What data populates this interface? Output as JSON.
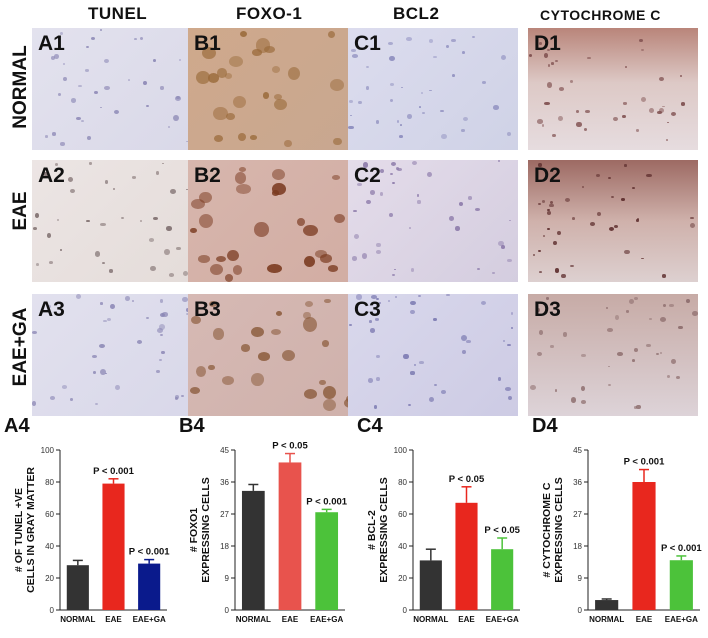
{
  "columns": [
    "TUNEL",
    "FOXO-1",
    "BCL2",
    "CYTOCHROME C"
  ],
  "rows": [
    "NORMAL",
    "EAE",
    "EAE+GA"
  ],
  "panel_labels": [
    [
      "A1",
      "B1",
      "C1",
      "D1"
    ],
    [
      "A2",
      "B2",
      "C2",
      "D2"
    ],
    [
      "A3",
      "B3",
      "C3",
      "D3"
    ]
  ],
  "colors": {
    "normal_bar": "#333333",
    "eae_bar_a": "#e8271e",
    "eae_bar_b": "#e8534d",
    "eae_plus_ga_a": "#0a1a8c",
    "eae_plus_ga_green": "#4cc23a"
  },
  "chart_data": [
    {
      "type": "bar",
      "panel_label": "A4",
      "categories": [
        "NORMAL",
        "EAE",
        "EAE+GA"
      ],
      "values": [
        28,
        79,
        29
      ],
      "errors": [
        3,
        3,
        2.5
      ],
      "annotations": [
        "",
        "P < 0.001",
        "P < 0.001"
      ],
      "ylabel": "# OF TUNEL +VE CELLS IN GRAY MATTER",
      "ylim": [
        0,
        100
      ],
      "yticks": [
        "0",
        "20",
        "40",
        "60",
        "80",
        "100"
      ]
    },
    {
      "type": "bar",
      "panel_label": "B4",
      "categories": [
        "NORMAL",
        "EAE",
        "EAE+GA"
      ],
      "values": [
        33.5,
        41.5,
        27.5
      ],
      "errors": [
        1.8,
        2.5,
        0.8
      ],
      "annotations": [
        "",
        "P < 0.05",
        "P < 0.001"
      ],
      "ylabel": "# FOXO1 EXPRESSING CELLS",
      "ylim": [
        0,
        45
      ],
      "yticks": [
        "0",
        "9",
        "18",
        "27",
        "36",
        "45"
      ]
    },
    {
      "type": "bar",
      "panel_label": "C4",
      "categories": [
        "NORMAL",
        "EAE",
        "EAE+GA"
      ],
      "values": [
        31,
        67,
        38
      ],
      "errors": [
        7,
        10,
        7
      ],
      "annotations": [
        "",
        "P < 0.05",
        "P < 0.05"
      ],
      "ylabel": "# BCL-2 EXPRESSING CELLS",
      "ylim": [
        0,
        100
      ],
      "yticks": [
        "0",
        "20",
        "40",
        "60",
        "80",
        "100"
      ]
    },
    {
      "type": "bar",
      "panel_label": "D4",
      "categories": [
        "NORMAL",
        "EAE",
        "EAE+GA"
      ],
      "values": [
        2.8,
        36,
        14
      ],
      "errors": [
        0.3,
        3.5,
        1.2
      ],
      "annotations": [
        "",
        "P < 0.001",
        "P < 0.001"
      ],
      "ylabel": "# CYTOCHROME C EXPRESSING CELLS",
      "ylim": [
        0,
        45
      ],
      "yticks": [
        "0",
        "9",
        "18",
        "27",
        "36",
        "45"
      ]
    }
  ]
}
